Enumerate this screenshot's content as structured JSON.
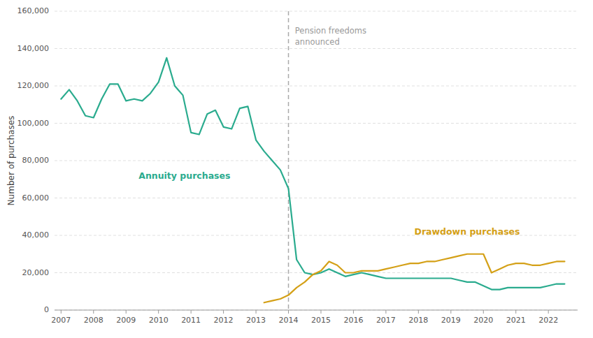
{
  "chart_data": {
    "type": "line",
    "ylabel": "Number of purchases",
    "xlim": [
      2006.8,
      2022.9
    ],
    "xticks": [
      2007,
      2008,
      2009,
      2010,
      2011,
      2012,
      2013,
      2014,
      2015,
      2016,
      2017,
      2018,
      2019,
      2020,
      2021,
      2022
    ],
    "ylim": [
      0,
      160000
    ],
    "yticks": [
      0,
      {
        "value": 20000,
        "label": "20,000"
      },
      {
        "value": 40000,
        "label": "40,000"
      },
      {
        "value": 60000,
        "label": "60,000"
      },
      {
        "value": 80000,
        "label": "80,000"
      },
      {
        "value": 100000,
        "label": "100,000"
      },
      {
        "value": 120000,
        "label": "120,000"
      },
      {
        "value": 140000,
        "label": "140,000"
      },
      {
        "value": 160000,
        "label": "160,000"
      }
    ],
    "grid": true,
    "series": [
      {
        "color": "#2aab8e",
        "x": [
          2007.0,
          2007.25,
          2007.5,
          2007.75,
          2008.0,
          2008.25,
          2008.5,
          2008.75,
          2009.0,
          2009.25,
          2009.5,
          2009.75,
          2010.0,
          2010.25,
          2010.5,
          2010.75,
          2011.0,
          2011.25,
          2011.5,
          2011.75,
          2012.0,
          2012.25,
          2012.5,
          2012.75,
          2013.0,
          2013.25,
          2013.5,
          2013.75,
          2014.0,
          2014.25,
          2014.5,
          2014.75,
          2015.0,
          2015.25,
          2015.5,
          2015.75,
          2016.0,
          2016.25,
          2016.5,
          2016.75,
          2017.0,
          2017.25,
          2017.5,
          2017.75,
          2018.0,
          2018.25,
          2018.5,
          2018.75,
          2019.0,
          2019.25,
          2019.5,
          2019.75,
          2020.0,
          2020.25,
          2020.5,
          2020.75,
          2021.0,
          2021.25,
          2021.5,
          2021.75,
          2022.0,
          2022.25,
          2022.5
        ],
        "values": [
          113000,
          118000,
          112000,
          104000,
          103000,
          113000,
          121000,
          121000,
          112000,
          113000,
          112000,
          116000,
          122000,
          135000,
          120000,
          115000,
          95000,
          94000,
          105000,
          107000,
          98000,
          97000,
          108000,
          109000,
          91000,
          85000,
          80000,
          75000,
          65000,
          27000,
          20000,
          19000,
          20000,
          22000,
          20000,
          18000,
          19000,
          20000,
          19000,
          18000,
          17000,
          17000,
          17000,
          17000,
          17000,
          17000,
          17000,
          17000,
          17000,
          16000,
          15000,
          15000,
          13000,
          11000,
          11000,
          12000,
          12000,
          12000,
          12000,
          12000,
          13000,
          14000,
          14000
        ]
      },
      {
        "color": "#d4a017",
        "x": [
          2013.25,
          2013.5,
          2013.75,
          2014.0,
          2014.25,
          2014.5,
          2014.75,
          2015.0,
          2015.25,
          2015.5,
          2015.75,
          2016.0,
          2016.25,
          2016.5,
          2016.75,
          2017.0,
          2017.25,
          2017.5,
          2017.75,
          2018.0,
          2018.25,
          2018.5,
          2018.75,
          2019.0,
          2019.25,
          2019.5,
          2019.75,
          2020.0,
          2020.25,
          2020.5,
          2020.75,
          2021.0,
          2021.25,
          2021.5,
          2021.75,
          2022.0,
          2022.25,
          2022.5
        ],
        "values": [
          4000,
          5000,
          6000,
          8000,
          12000,
          15000,
          19000,
          21000,
          26000,
          24000,
          20000,
          20000,
          21000,
          21000,
          21000,
          22000,
          23000,
          24000,
          25000,
          25000,
          26000,
          26000,
          27000,
          28000,
          29000,
          30000,
          30000,
          30000,
          20000,
          22000,
          24000,
          25000,
          25000,
          24000,
          24000,
          25000,
          26000,
          26000
        ]
      }
    ],
    "reference_lines": [
      {
        "x": 2014.0,
        "color": "#aaaaaa",
        "line_style": "dashed"
      }
    ],
    "annotations": [
      {
        "text": "Pension freedoms\nannounced",
        "x": 2014.2,
        "y": 152000,
        "color": "#999999"
      },
      {
        "text": "Annuity purchases",
        "x": 2010.8,
        "y": 72000,
        "color": "#2aab8e"
      },
      {
        "text": "Drawdown purchases",
        "x": 2019.5,
        "y": 42000,
        "color": "#d4a017"
      }
    ]
  }
}
